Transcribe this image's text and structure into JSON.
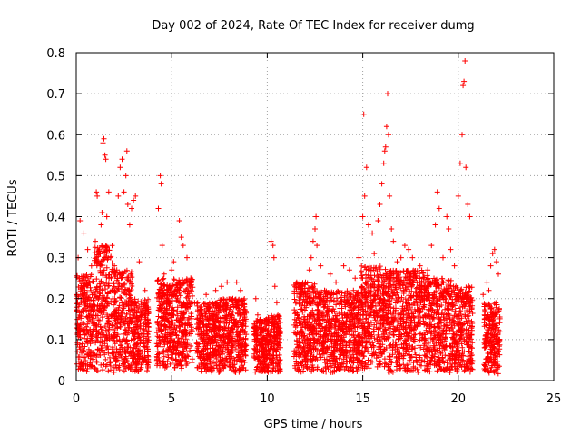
{
  "chart_data": {
    "type": "scatter",
    "title": "Day 002 of 2024, Rate Of TEC Index for receiver dumg",
    "xlabel": "GPS time / hours",
    "ylabel": "ROTI / TECUs",
    "xlim": [
      0,
      25
    ],
    "ylim": [
      0,
      0.8
    ],
    "x_ticks": [
      "0",
      "5",
      "10",
      "15",
      "20",
      "25"
    ],
    "y_ticks": [
      "0",
      "0.1",
      "0.2",
      "0.3",
      "0.4",
      "0.5",
      "0.6",
      "0.7",
      "0.8"
    ],
    "grid": true,
    "marker": "+",
    "marker_color": "#ff0000",
    "series": [
      {
        "points": [
          [
            0.1,
            0.3
          ],
          [
            0.2,
            0.39
          ],
          [
            0.3,
            0.25
          ],
          [
            0.4,
            0.36
          ],
          [
            0.6,
            0.32
          ],
          [
            0.8,
            0.28
          ],
          [
            1.0,
            0.34
          ],
          [
            1.05,
            0.46
          ],
          [
            1.1,
            0.45
          ],
          [
            1.2,
            0.31
          ],
          [
            1.3,
            0.38
          ],
          [
            1.35,
            0.41
          ],
          [
            1.4,
            0.58
          ],
          [
            1.45,
            0.59
          ],
          [
            1.5,
            0.55
          ],
          [
            1.55,
            0.54
          ],
          [
            1.6,
            0.4
          ],
          [
            1.7,
            0.46
          ],
          [
            1.8,
            0.3
          ],
          [
            2.0,
            0.28
          ],
          [
            2.2,
            0.45
          ],
          [
            2.3,
            0.52
          ],
          [
            2.4,
            0.54
          ],
          [
            2.5,
            0.46
          ],
          [
            2.6,
            0.5
          ],
          [
            2.65,
            0.56
          ],
          [
            2.7,
            0.43
          ],
          [
            2.8,
            0.38
          ],
          [
            2.9,
            0.42
          ],
          [
            3.0,
            0.44
          ],
          [
            3.1,
            0.45
          ],
          [
            3.3,
            0.29
          ],
          [
            3.5,
            0.17
          ],
          [
            3.6,
            0.22
          ],
          [
            4.3,
            0.42
          ],
          [
            4.4,
            0.5
          ],
          [
            4.45,
            0.48
          ],
          [
            4.5,
            0.33
          ],
          [
            4.6,
            0.26
          ],
          [
            5.0,
            0.27
          ],
          [
            5.1,
            0.29
          ],
          [
            5.3,
            0.22
          ],
          [
            5.4,
            0.39
          ],
          [
            5.5,
            0.35
          ],
          [
            5.6,
            0.33
          ],
          [
            5.8,
            0.3
          ],
          [
            6.0,
            0.25
          ],
          [
            6.2,
            0.19
          ],
          [
            6.5,
            0.16
          ],
          [
            6.8,
            0.21
          ],
          [
            7.0,
            0.18
          ],
          [
            7.3,
            0.22
          ],
          [
            7.6,
            0.23
          ],
          [
            7.9,
            0.24
          ],
          [
            8.2,
            0.2
          ],
          [
            8.4,
            0.24
          ],
          [
            8.6,
            0.22
          ],
          [
            8.8,
            0.16
          ],
          [
            9.4,
            0.2
          ],
          [
            9.5,
            0.16
          ],
          [
            9.6,
            0.14
          ],
          [
            10.2,
            0.34
          ],
          [
            10.3,
            0.33
          ],
          [
            10.35,
            0.3
          ],
          [
            10.4,
            0.23
          ],
          [
            10.5,
            0.19
          ],
          [
            11.5,
            0.14
          ],
          [
            11.8,
            0.21
          ],
          [
            12.0,
            0.24
          ],
          [
            12.2,
            0.27
          ],
          [
            12.3,
            0.3
          ],
          [
            12.4,
            0.34
          ],
          [
            12.5,
            0.37
          ],
          [
            12.55,
            0.4
          ],
          [
            12.6,
            0.33
          ],
          [
            12.8,
            0.28
          ],
          [
            13.0,
            0.22
          ],
          [
            13.3,
            0.26
          ],
          [
            13.6,
            0.24
          ],
          [
            14.0,
            0.28
          ],
          [
            14.3,
            0.27
          ],
          [
            14.6,
            0.25
          ],
          [
            14.8,
            0.3
          ],
          [
            15.0,
            0.4
          ],
          [
            15.05,
            0.65
          ],
          [
            15.1,
            0.45
          ],
          [
            15.2,
            0.52
          ],
          [
            15.3,
            0.38
          ],
          [
            15.5,
            0.36
          ],
          [
            15.6,
            0.31
          ],
          [
            15.8,
            0.39
          ],
          [
            15.9,
            0.43
          ],
          [
            16.0,
            0.48
          ],
          [
            16.1,
            0.53
          ],
          [
            16.15,
            0.56
          ],
          [
            16.2,
            0.57
          ],
          [
            16.25,
            0.62
          ],
          [
            16.3,
            0.7
          ],
          [
            16.35,
            0.6
          ],
          [
            16.4,
            0.45
          ],
          [
            16.5,
            0.37
          ],
          [
            16.6,
            0.34
          ],
          [
            16.8,
            0.29
          ],
          [
            17.0,
            0.3
          ],
          [
            17.2,
            0.33
          ],
          [
            17.4,
            0.32
          ],
          [
            17.6,
            0.3
          ],
          [
            17.8,
            0.25
          ],
          [
            18.0,
            0.28
          ],
          [
            18.2,
            0.24
          ],
          [
            18.4,
            0.27
          ],
          [
            18.6,
            0.33
          ],
          [
            18.8,
            0.38
          ],
          [
            18.9,
            0.46
          ],
          [
            19.0,
            0.42
          ],
          [
            19.2,
            0.3
          ],
          [
            19.4,
            0.4
          ],
          [
            19.5,
            0.37
          ],
          [
            19.6,
            0.32
          ],
          [
            19.8,
            0.28
          ],
          [
            20.0,
            0.45
          ],
          [
            20.1,
            0.53
          ],
          [
            20.2,
            0.6
          ],
          [
            20.25,
            0.72
          ],
          [
            20.3,
            0.73
          ],
          [
            20.35,
            0.78
          ],
          [
            20.4,
            0.52
          ],
          [
            20.5,
            0.43
          ],
          [
            20.6,
            0.4
          ],
          [
            21.3,
            0.21
          ],
          [
            21.4,
            0.17
          ],
          [
            21.5,
            0.24
          ],
          [
            21.6,
            0.22
          ],
          [
            21.7,
            0.28
          ],
          [
            21.8,
            0.31
          ],
          [
            21.9,
            0.32
          ],
          [
            22.0,
            0.29
          ],
          [
            22.1,
            0.26
          ]
        ],
        "band_segments": [
          [
            0.0,
            0.95,
            0.02,
            0.26
          ],
          [
            0.95,
            1.9,
            0.02,
            0.33
          ],
          [
            1.9,
            2.95,
            0.02,
            0.27
          ],
          [
            2.95,
            3.8,
            0.02,
            0.2
          ],
          [
            4.2,
            6.1,
            0.03,
            0.25
          ],
          [
            6.3,
            7.5,
            0.02,
            0.19
          ],
          [
            7.5,
            8.9,
            0.02,
            0.2
          ],
          [
            9.3,
            9.9,
            0.02,
            0.15
          ],
          [
            9.9,
            10.7,
            0.02,
            0.16
          ],
          [
            11.4,
            12.6,
            0.02,
            0.24
          ],
          [
            12.6,
            14.9,
            0.02,
            0.22
          ],
          [
            14.9,
            16.3,
            0.03,
            0.28
          ],
          [
            16.3,
            18.4,
            0.02,
            0.27
          ],
          [
            18.4,
            19.7,
            0.02,
            0.25
          ],
          [
            19.7,
            20.75,
            0.02,
            0.23
          ],
          [
            21.35,
            22.2,
            0.01,
            0.19
          ]
        ]
      }
    ]
  }
}
